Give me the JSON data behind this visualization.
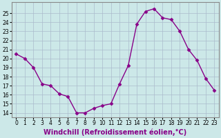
{
  "x": [
    0,
    1,
    2,
    3,
    4,
    5,
    6,
    7,
    8,
    9,
    10,
    11,
    12,
    13,
    14,
    15,
    16,
    17,
    18,
    19,
    20,
    21,
    22,
    23
  ],
  "y": [
    20.5,
    20.0,
    19.0,
    17.2,
    17.0,
    16.1,
    15.8,
    14.0,
    14.0,
    14.5,
    14.8,
    15.0,
    17.2,
    19.2,
    23.8,
    25.2,
    25.5,
    24.5,
    24.3,
    23.0,
    21.0,
    19.8,
    17.8,
    16.5
  ],
  "line_color": "#880088",
  "marker": "D",
  "marker_size": 2.5,
  "xlabel": "Windchill (Refroidissement éolien,°C)",
  "xlabel_fontsize": 7,
  "ylabel_ticks": [
    14,
    15,
    16,
    17,
    18,
    19,
    20,
    21,
    22,
    23,
    24,
    25
  ],
  "xticks": [
    0,
    1,
    2,
    3,
    4,
    5,
    6,
    7,
    8,
    9,
    10,
    11,
    12,
    13,
    14,
    15,
    16,
    17,
    18,
    19,
    20,
    21,
    22,
    23
  ],
  "ylim": [
    13.5,
    26.2
  ],
  "xlim": [
    -0.5,
    23.5
  ],
  "bg_color": "#cce8e8",
  "grid_color": "#aabbcc",
  "tick_fontsize": 5.5,
  "line_width": 1.0
}
